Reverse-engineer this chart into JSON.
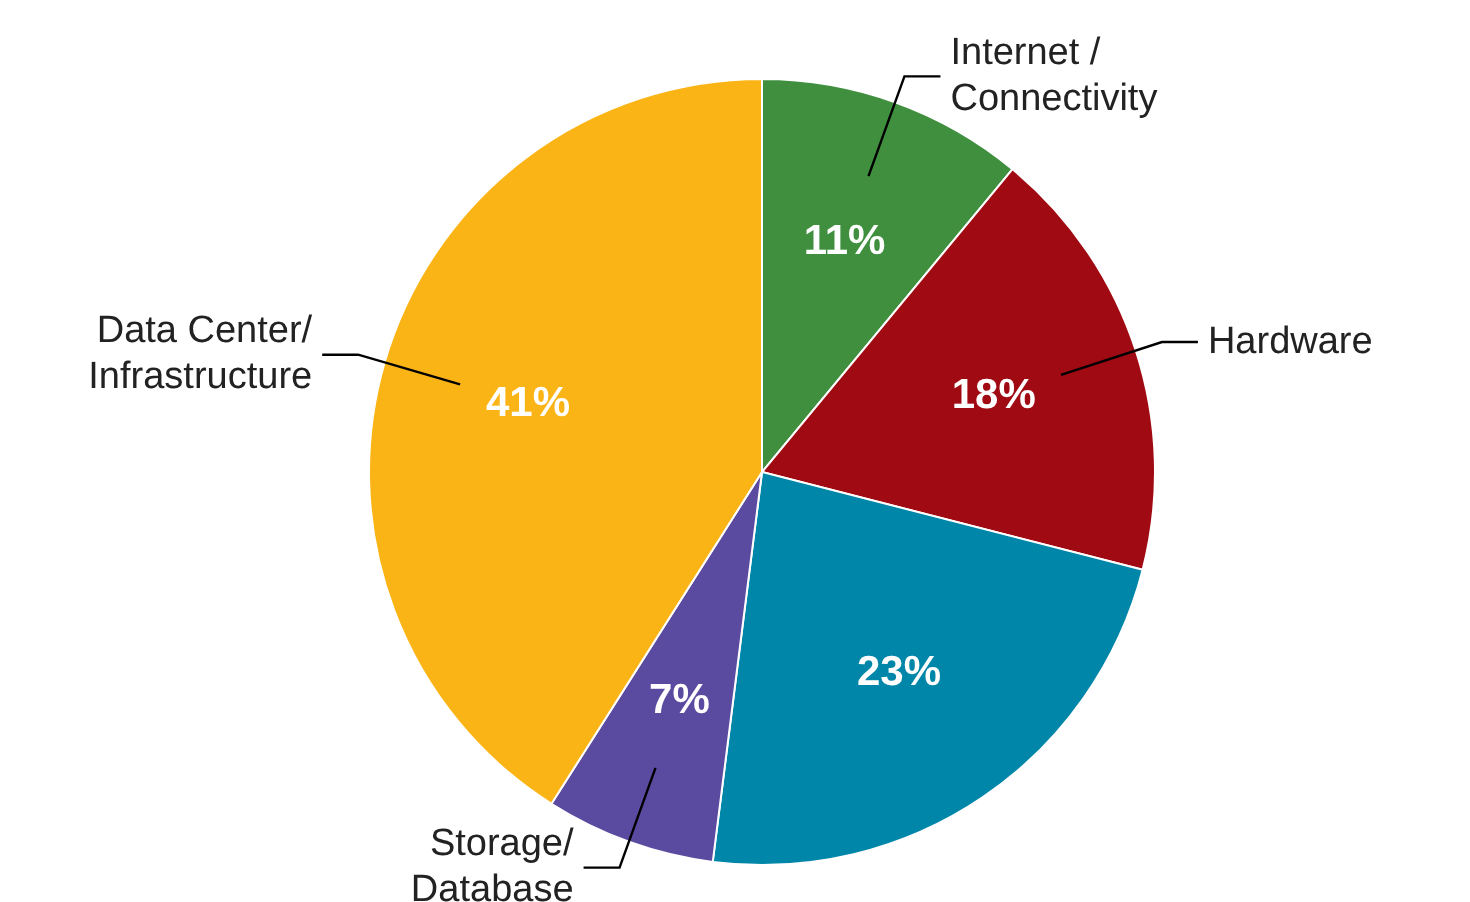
{
  "chart_data": {
    "type": "pie",
    "categories": [
      "Internet / Connectivity",
      "Hardware",
      null,
      "Storage/ Database",
      "Data Center/ Infrastructure"
    ],
    "values": [
      11,
      18,
      23,
      7,
      41
    ],
    "colors": [
      "#3f8f3f",
      "#a00a12",
      "#0086a8",
      "#5a4aa0",
      "#fbb416"
    ],
    "value_labels": [
      "11%",
      "18%",
      "23%",
      "7%",
      "41%"
    ],
    "legend": false
  }
}
